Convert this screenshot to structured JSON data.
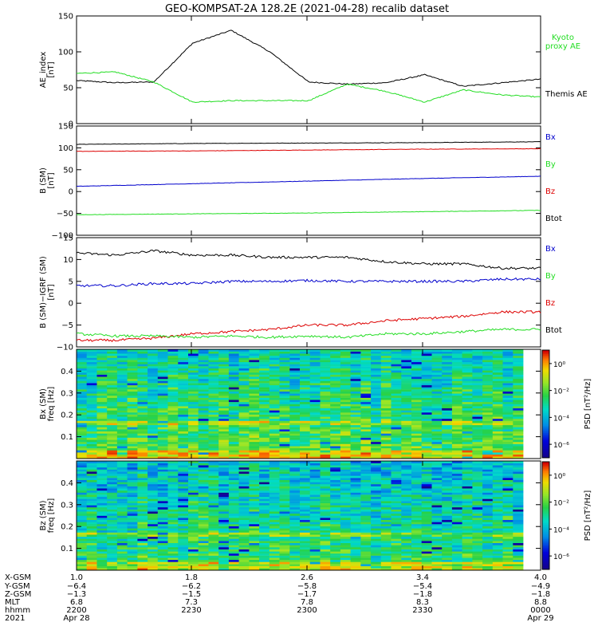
{
  "title": "GEO-KOMPSAT-2A 128.2E (2021-04-28) recalib dataset",
  "colors": {
    "black": "#000000",
    "green": "#22dd22",
    "red": "#dd0000",
    "blue": "#0000cc"
  },
  "panels": {
    "ae": {
      "ylabel": "AE_index",
      "yunit": "[nT]",
      "yticks": [
        "0",
        "50",
        "100",
        "150"
      ],
      "legend": [
        {
          "text": "Kyoto proxy AE",
          "lines": [
            "Kyoto",
            "proxy AE"
          ],
          "color": "green"
        },
        {
          "text": "Themis AE",
          "lines": [
            "Themis AE"
          ],
          "color": "black"
        }
      ]
    },
    "b": {
      "ylabel": "B (SM)",
      "yunit": "[nT]",
      "yticks": [
        "−100",
        "−50",
        "0",
        "50",
        "100",
        "150"
      ],
      "legend": [
        {
          "text": "Bx",
          "color": "blue"
        },
        {
          "text": "By",
          "color": "green"
        },
        {
          "text": "Bz",
          "color": "red"
        },
        {
          "text": "Btot",
          "color": "black"
        }
      ]
    },
    "db": {
      "ylabel": "B (SM)−IGRF (SM)",
      "yunit": "[nT]",
      "yticks": [
        "−10",
        "−5",
        "0",
        "5",
        "10",
        "15"
      ],
      "legend": [
        {
          "text": "Bx",
          "color": "blue"
        },
        {
          "text": "By",
          "color": "green"
        },
        {
          "text": "Bz",
          "color": "red"
        },
        {
          "text": "Btot",
          "color": "black"
        }
      ]
    },
    "specx": {
      "ylabel": "Bx (SM)",
      "yunit": "freq [Hz]",
      "yticks": [
        "0.1",
        "0.2",
        "0.3",
        "0.4"
      ],
      "cbar_label": "PSD [nT²/Hz]",
      "cbar_ticks": [
        "10⁰",
        "10⁻²",
        "10⁻⁴",
        "10⁻⁶"
      ]
    },
    "specz": {
      "ylabel": "Bz (SM)",
      "yunit": "freq [Hz]",
      "yticks": [
        "0.1",
        "0.2",
        "0.3",
        "0.4"
      ],
      "cbar_label": "PSD [nT²/Hz]",
      "cbar_ticks": [
        "10⁰",
        "10⁻²",
        "10⁻⁴",
        "10⁻⁶"
      ]
    }
  },
  "xaxis": {
    "row_labels": [
      "X-GSM",
      "Y-GSM",
      "Z-GSM",
      "MLT",
      "hhmm",
      "2021"
    ],
    "ticks": [
      {
        "rows": [
          "1.0",
          "−6.4",
          "−1.3",
          "6.8",
          "2200",
          "Apr 28"
        ]
      },
      {
        "rows": [
          "1.8",
          "−6.2",
          "−1.5",
          "7.3",
          "2230",
          ""
        ]
      },
      {
        "rows": [
          "2.6",
          "−5.8",
          "−1.7",
          "7.8",
          "2300",
          ""
        ]
      },
      {
        "rows": [
          "3.4",
          "−5.4",
          "−1.8",
          "8.3",
          "2330",
          ""
        ]
      },
      {
        "rows": [
          "4.0",
          "−4.9",
          "−1.8",
          "8.8",
          "0000",
          "Apr 29"
        ]
      }
    ]
  },
  "chart_data": [
    {
      "type": "line",
      "ylabel": "AE_index [nT]",
      "ylim": [
        0,
        150
      ],
      "x_time": [
        "22:00",
        "22:10",
        "22:20",
        "22:30",
        "22:40",
        "22:50",
        "23:00",
        "23:10",
        "23:20",
        "23:30",
        "23:40",
        "23:50",
        "00:00"
      ],
      "series": [
        {
          "name": "Themis AE",
          "color": "black",
          "values": [
            60,
            57,
            58,
            112,
            130,
            100,
            58,
            55,
            57,
            68,
            52,
            57,
            62
          ]
        },
        {
          "name": "Kyoto proxy AE",
          "color": "green",
          "values": [
            70,
            72,
            58,
            30,
            32,
            32,
            32,
            55,
            45,
            30,
            47,
            40,
            37
          ]
        }
      ]
    },
    {
      "type": "line",
      "ylabel": "B (SM) [nT]",
      "ylim": [
        -100,
        150
      ],
      "x_time": [
        "22:00",
        "22:30",
        "23:00",
        "23:30",
        "00:00"
      ],
      "series": [
        {
          "name": "Btot",
          "color": "black",
          "values": [
            108,
            110,
            111,
            112,
            114
          ]
        },
        {
          "name": "Bz",
          "color": "red",
          "values": [
            92,
            93,
            95,
            97,
            98
          ]
        },
        {
          "name": "Bx",
          "color": "blue",
          "values": [
            12,
            18,
            24,
            30,
            35
          ]
        },
        {
          "name": "By",
          "color": "green",
          "values": [
            -53,
            -51,
            -49,
            -46,
            -43
          ]
        }
      ]
    },
    {
      "type": "line",
      "ylabel": "B (SM)−IGRF (SM) [nT]",
      "ylim": [
        -10,
        15
      ],
      "x_time": [
        "22:00",
        "22:10",
        "22:20",
        "22:30",
        "22:40",
        "22:50",
        "23:00",
        "23:10",
        "23:20",
        "23:30",
        "23:40",
        "23:50",
        "00:00"
      ],
      "series": [
        {
          "name": "Btot",
          "color": "black",
          "values": [
            11.5,
            11,
            12,
            11,
            11,
            10.5,
            10.5,
            10.5,
            9.5,
            9,
            9,
            8,
            8
          ]
        },
        {
          "name": "Bx",
          "color": "blue",
          "values": [
            4,
            4,
            4.5,
            4.5,
            5,
            5,
            5.2,
            5,
            5,
            5,
            5,
            5.5,
            5.5
          ]
        },
        {
          "name": "Bz",
          "color": "red",
          "values": [
            -8.5,
            -8.5,
            -8,
            -7,
            -6.5,
            -6,
            -5,
            -5,
            -4,
            -3.5,
            -3,
            -2,
            -2
          ]
        },
        {
          "name": "By",
          "color": "green",
          "values": [
            -7,
            -7.5,
            -7.5,
            -7.8,
            -7.5,
            -7.8,
            -7.5,
            -7.8,
            -7,
            -7,
            -6.5,
            -6,
            -6
          ]
        }
      ]
    },
    {
      "type": "heatmap",
      "ylabel": "Bx (SM) freq [Hz]",
      "ylim": [
        0,
        0.5
      ],
      "colorbar": "PSD [nT²/Hz]",
      "color_range_log10": [
        -7,
        1
      ]
    },
    {
      "type": "heatmap",
      "ylabel": "Bz (SM) freq [Hz]",
      "ylim": [
        0,
        0.5
      ],
      "colorbar": "PSD [nT²/Hz]",
      "color_range_log10": [
        -7,
        1
      ]
    }
  ]
}
